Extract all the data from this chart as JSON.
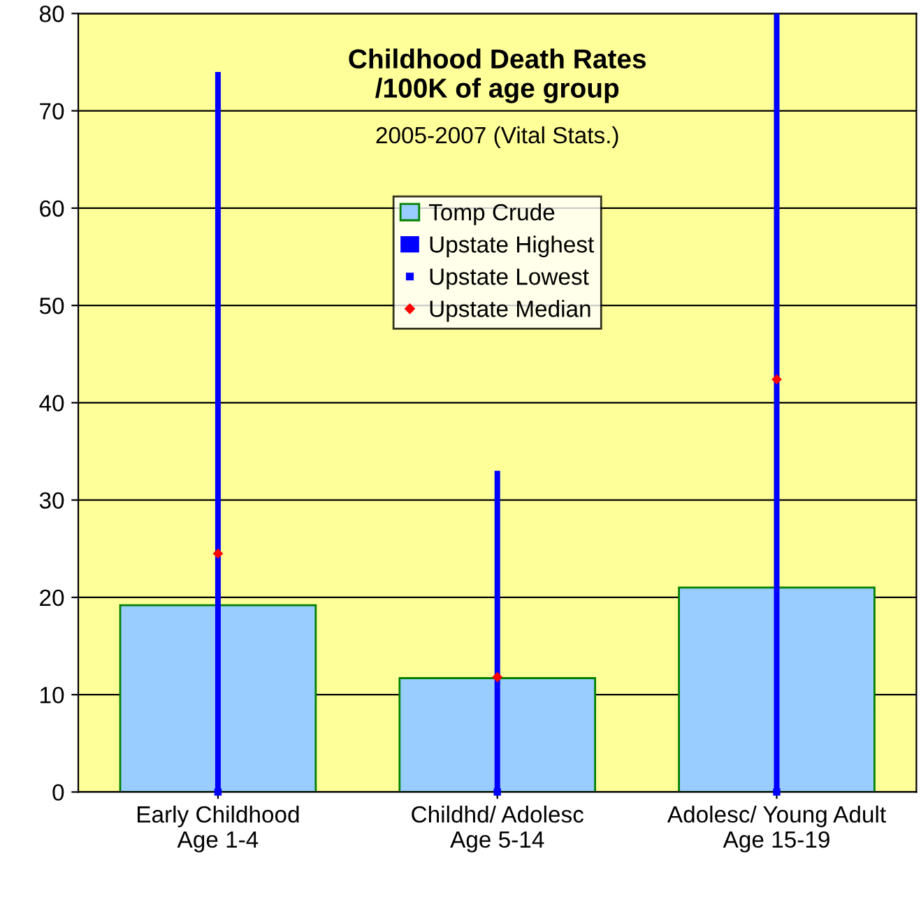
{
  "chart_data": {
    "type": "bar",
    "title": "Childhood Death Rates\n/100K of age group",
    "subtitle": "2005-2007 (Vital Stats.)",
    "categories": [
      "Early Childhood\nAge 1-4",
      "Childhd/ Adolesc\nAge 5-14",
      "Adolesc/ Young Adult\nAge 15-19"
    ],
    "series": [
      {
        "name": "Tomp Crude",
        "color": "#99ccff",
        "values": [
          19.2,
          11.7,
          21.0
        ]
      },
      {
        "name": "Upstate Highest",
        "color": "#0000ff",
        "values": [
          74,
          33,
          80
        ],
        "base": [
          0,
          0,
          0
        ]
      },
      {
        "name": "Upstate Lowest",
        "type": "scatter",
        "marker": "square",
        "color": "#0000ff",
        "values": [
          0,
          0,
          0
        ]
      },
      {
        "name": "Upstate Median",
        "type": "scatter",
        "color": "#ff0000",
        "marker": "diamond",
        "values": [
          24.5,
          11.8,
          42.4
        ]
      }
    ],
    "ylim": [
      0,
      80
    ],
    "yticks": [
      0,
      10,
      20,
      30,
      40,
      50,
      60,
      70,
      80
    ],
    "grid": "y",
    "legend": "top"
  }
}
